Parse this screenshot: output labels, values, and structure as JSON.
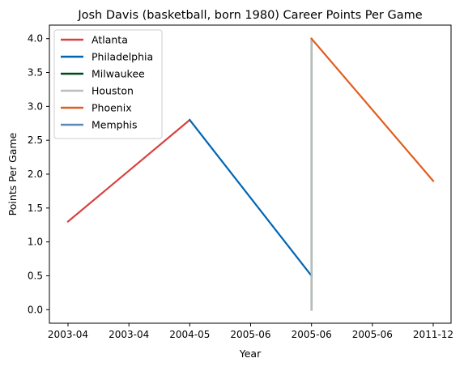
{
  "chart_data": {
    "type": "line",
    "title": "Josh Davis (basketball, born 1980) Career Points Per Game",
    "xlabel": "Year",
    "ylabel": "Points Per Game",
    "x_tick_labels": [
      "2003-04",
      "2003-04",
      "2004-05",
      "2005-06",
      "2005-06",
      "2005-06",
      "2011-12"
    ],
    "y_tick_labels": [
      "0.0",
      "0.5",
      "1.0",
      "1.5",
      "2.0",
      "2.5",
      "3.0",
      "3.5",
      "4.0"
    ],
    "ylim": [
      -0.2,
      4.2
    ],
    "grid": false,
    "legend_position": "top-left",
    "series": [
      {
        "name": "Atlanta",
        "color": "#d94040",
        "points": [
          [
            0,
            1.3
          ],
          [
            2,
            2.8
          ]
        ]
      },
      {
        "name": "Philadelphia",
        "color": "#0066b3",
        "points": [
          [
            2,
            2.8
          ],
          [
            4,
            0.5
          ]
        ]
      },
      {
        "name": "Milwaukee",
        "color": "#00471b",
        "points": [
          [
            4,
            4.0
          ],
          [
            4,
            0.0
          ]
        ]
      },
      {
        "name": "Houston",
        "color": "#bdbdbd",
        "points": [
          [
            4,
            4.0
          ],
          [
            4,
            0.0
          ]
        ]
      },
      {
        "name": "Phoenix",
        "color": "#e05e1e",
        "points": [
          [
            4,
            4.0
          ],
          [
            6,
            1.9
          ]
        ]
      },
      {
        "name": "Memphis",
        "color": "#5d89b8",
        "points": []
      }
    ]
  }
}
